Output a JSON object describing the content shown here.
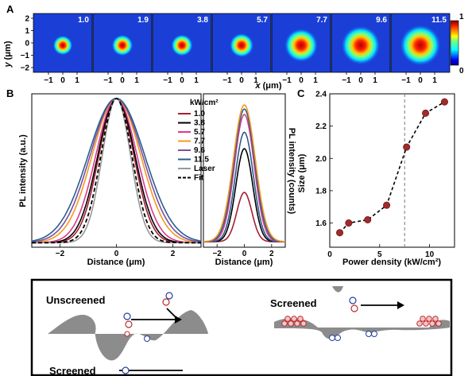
{
  "panel_labels": {
    "a": "A",
    "b": "B",
    "c": "C"
  },
  "chart_data": [
    {
      "type": "heatmap",
      "panel": "A",
      "ylabel_var": "y",
      "ylabel_unit": "(μm)",
      "xlabel_var": "x",
      "xlabel_unit": "(μm)",
      "y_ticks": [
        "2",
        "1",
        "0",
        "−1",
        "−2"
      ],
      "x_ticks": [
        "−1",
        "0",
        "1"
      ],
      "images": [
        {
          "label": "1.0",
          "size": 1.54
        },
        {
          "label": "1.9",
          "size": 1.6
        },
        {
          "label": "3.8",
          "size": 1.62
        },
        {
          "label": "5.7",
          "size": 1.71
        },
        {
          "label": "7.7",
          "size": 2.07
        },
        {
          "label": "9.6",
          "size": 2.28
        },
        {
          "label": "11.5",
          "size": 2.35
        }
      ],
      "colorbar": {
        "max_label": "1",
        "min_label": "0"
      }
    },
    {
      "type": "line",
      "panel": "B-left",
      "ylabel": "PL intensity (a.u.)",
      "xlabel": "Distance (μm)",
      "x_ticks": [
        "−2",
        "0",
        "2"
      ],
      "xlim": [
        -3,
        3
      ],
      "legend_title": "kW/cm²",
      "legend_placement": "top-right",
      "series": [
        {
          "name": "1.0",
          "color": "#a31f34",
          "sigma": 0.62
        },
        {
          "name": "3.8",
          "color": "#000000",
          "sigma": 0.66
        },
        {
          "name": "5.7",
          "color": "#d93b8c",
          "sigma": 0.73
        },
        {
          "name": "7.7",
          "color": "#f59a1c",
          "sigma": 0.86
        },
        {
          "name": "9.6",
          "color": "#7a4fa6",
          "sigma": 0.93
        },
        {
          "name": "11.5",
          "color": "#2a5d8f",
          "sigma": 1.0
        },
        {
          "name": "Laser",
          "color": "#999999",
          "sigma": 0.5
        },
        {
          "name": "Fit",
          "color": "#000000",
          "sigma": 0.55,
          "dashed": true
        }
      ]
    },
    {
      "type": "line",
      "panel": "B-right",
      "ylabel": "PL intensity (counts)",
      "xlabel": "Distance (μm)",
      "x_ticks": [
        "−2",
        "0",
        "2"
      ],
      "xlim": [
        -3,
        3
      ],
      "series": [
        {
          "name": "1.0",
          "color": "#a31f34",
          "amp": 0.36,
          "sigma": 0.55
        },
        {
          "name": "3.8",
          "color": "#000000",
          "amp": 0.68,
          "sigma": 0.62
        },
        {
          "name": "5.7",
          "color": "#2a5d8f",
          "amp": 0.8,
          "sigma": 0.66
        },
        {
          "name": "7.7",
          "color": "#d93b8c",
          "amp": 0.93,
          "sigma": 0.72
        },
        {
          "name": "9.6",
          "color": "#2a5d8f",
          "amp": 0.97,
          "sigma": 0.76
        },
        {
          "name": "11.5",
          "color": "#f59a1c",
          "amp": 1.0,
          "sigma": 0.8
        }
      ]
    },
    {
      "type": "scatter",
      "panel": "C",
      "xlabel": "Power density (kW/cm²)",
      "ylabel": "Size (μm)",
      "x": [
        1.0,
        1.9,
        3.8,
        5.7,
        7.7,
        9.6,
        11.5
      ],
      "y": [
        1.54,
        1.6,
        1.62,
        1.71,
        2.07,
        2.28,
        2.35
      ],
      "xlim": [
        0,
        12.5
      ],
      "ylim": [
        1.45,
        2.4
      ],
      "x_ticks": [
        0,
        5,
        10
      ],
      "y_ticks": [
        1.6,
        1.8,
        2.0,
        2.2,
        2.4
      ],
      "vline_x": 7.5,
      "marker_color": "#a12a2a"
    }
  ],
  "schematic": {
    "unscreened_label": "Unscreened",
    "screened_label_right": "Screened",
    "screened_label_bottom": "Screened"
  }
}
